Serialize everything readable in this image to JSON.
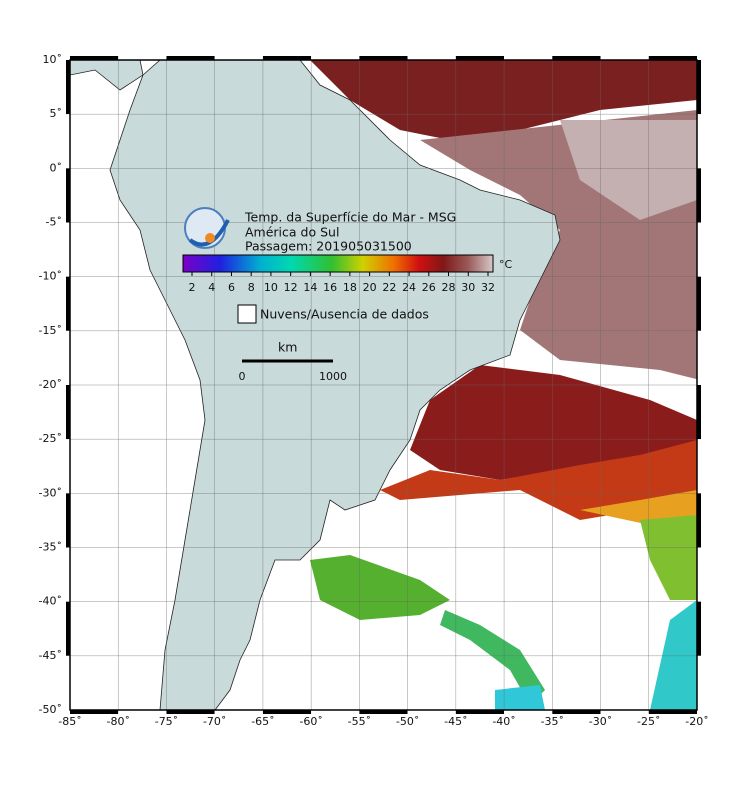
{
  "legend": {
    "title_lines": [
      "Temp. da Superfície do Mar - MSG",
      "América do Sul",
      "Passagem: 201905031500"
    ],
    "unit": "°C",
    "colorbar_ticks": [
      2,
      4,
      6,
      8,
      10,
      12,
      14,
      16,
      18,
      20,
      22,
      24,
      26,
      28,
      30,
      32
    ],
    "no_data_label": "Nuvens/Ausencia de dados"
  },
  "scale_bar": {
    "unit": "km",
    "labels": [
      0,
      1000
    ]
  },
  "map": {
    "lon_ticks": [
      {
        "value": -85,
        "label": "-85˚"
      },
      {
        "value": -80,
        "label": "-80˚"
      },
      {
        "value": -75,
        "label": "-75˚"
      },
      {
        "value": -70,
        "label": "-70˚"
      },
      {
        "value": -65,
        "label": "-65˚"
      },
      {
        "value": -60,
        "label": "-60˚"
      },
      {
        "value": -55,
        "label": "-55˚"
      },
      {
        "value": -50,
        "label": "-50˚"
      },
      {
        "value": -45,
        "label": "-45˚"
      },
      {
        "value": -40,
        "label": "-40˚"
      },
      {
        "value": -35,
        "label": "-35˚"
      },
      {
        "value": -30,
        "label": "-30˚"
      },
      {
        "value": -25,
        "label": "-25˚"
      },
      {
        "value": -20,
        "label": "-20˚"
      }
    ],
    "lat_ticks": [
      {
        "value": 10,
        "label": "10˚"
      },
      {
        "value": 5,
        "label": "5˚"
      },
      {
        "value": 0,
        "label": "0˚"
      },
      {
        "value": -5,
        "label": "-5˚"
      },
      {
        "value": -10,
        "label": "-10˚"
      },
      {
        "value": -15,
        "label": "-15˚"
      },
      {
        "value": -20,
        "label": "-20˚"
      },
      {
        "value": -25,
        "label": "-25˚"
      },
      {
        "value": -30,
        "label": "-30˚"
      },
      {
        "value": -35,
        "label": "-35˚"
      },
      {
        "value": -40,
        "label": "-40˚"
      },
      {
        "value": -45,
        "label": "-45˚"
      },
      {
        "value": -50,
        "label": "-50˚"
      }
    ]
  }
}
